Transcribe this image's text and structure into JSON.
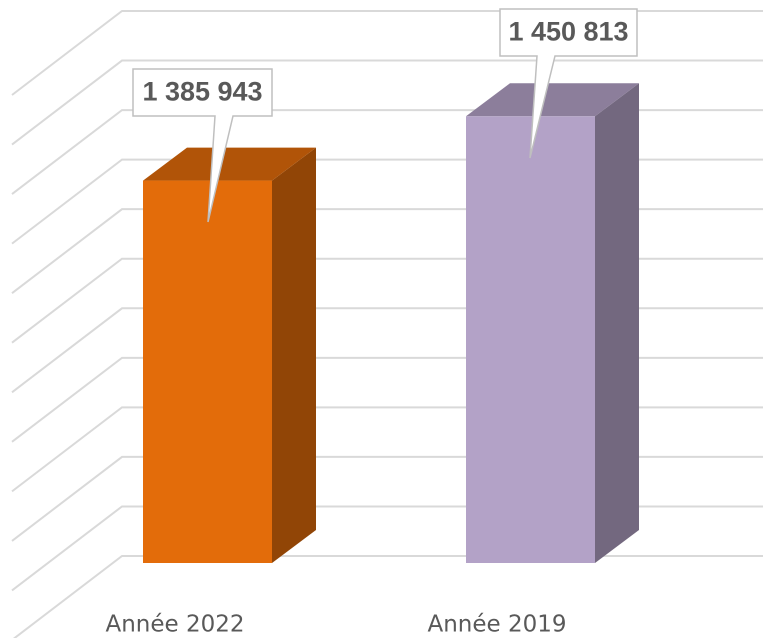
{
  "chart_data": {
    "type": "bar3d",
    "categories": [
      "Année 2022",
      "Année 2019"
    ],
    "values": [
      1385943,
      1450813
    ],
    "value_labels": [
      "1 385 943",
      "1 450 813"
    ],
    "colors": [
      "#e36c0a",
      "#b3a2c7"
    ],
    "ylim": [
      1000000,
      1550000
    ],
    "yticks": [
      1000000,
      1050000,
      1100000,
      1150000,
      1200000,
      1250000,
      1300000,
      1350000,
      1400000,
      1450000,
      1500000,
      1550000
    ],
    "grid": true
  }
}
